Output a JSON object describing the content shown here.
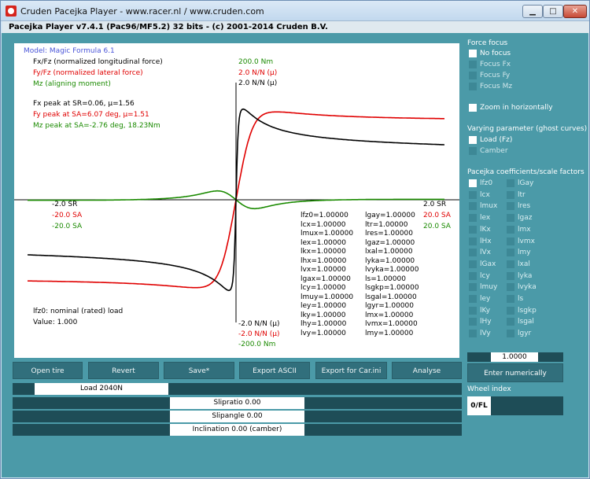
{
  "window": {
    "title": "Cruden Pacejka Player - www.racer.nl / www.cruden.com",
    "subtitle": "Pacejka Player v7.4.1 (Pac96/MF5.2) 32 bits - (c) 2001-2014 Cruden B.V.",
    "min_glyph": "▁",
    "max_glyph": "□",
    "close_glyph": "✕"
  },
  "plot": {
    "model": "Model: Magic Formula 6.1",
    "legend": [
      "Fx/Fz (normalized longitudinal force)",
      "Fy/Fz (normalized lateral force)",
      "Mz (aligning moment)"
    ],
    "peaks": [
      "Fx peak at SR=0.06, μ=1.56",
      "Fy peak at SA=6.07 deg, μ=1.51",
      "Mz peak at SA=-2.76 deg, 18.23Nm"
    ],
    "top_labels": [
      "200.0 Nm",
      "2.0 N/N (μ)",
      "2.0 N/N (μ)"
    ],
    "bottom_labels": [
      "-2.0 N/N (μ)",
      "-2.0 N/N (μ)",
      "-200.0 Nm"
    ],
    "left_labels": [
      "-2.0 SR",
      "-20.0 SA",
      "-20.0 SA"
    ],
    "right_labels": [
      "2.0 SR",
      "20.0 SA",
      "20.0 SA"
    ],
    "note": "lfz0: nominal (rated) load",
    "value": "Value: 1.000",
    "colors": {
      "fx": "#000000",
      "fy": "#e00000",
      "mz": "#1a8a00"
    }
  },
  "coefficients": {
    "col1": [
      "lfz0=1.00000",
      "lcx=1.00000",
      "lmux=1.00000",
      "lex=1.00000",
      "lkx=1.00000",
      "lhx=1.00000",
      "lvx=1.00000",
      "lgax=1.00000",
      "lcy=1.00000",
      "lmuy=1.00000",
      "ley=1.00000",
      "lky=1.00000",
      "lhy=1.00000",
      "lvy=1.00000"
    ],
    "col2": [
      "lgay=1.00000",
      "ltr=1.00000",
      "lres=1.00000",
      "lgaz=1.00000",
      "lxal=1.00000",
      "lyka=1.00000",
      "lvyka=1.00000",
      "ls=1.00000",
      "lsgkp=1.00000",
      "lsgal=1.00000",
      "lgyr=1.00000",
      "lmx=1.00000",
      "lvmx=1.00000",
      "lmy=1.00000"
    ]
  },
  "buttons": [
    "Open tire",
    "Revert",
    "Save*",
    "Export ASCII",
    "Export for Car.ini",
    "Analyse"
  ],
  "sliders": {
    "load": "Load 2040N",
    "slipratio": "Slipratio 0.00",
    "slipangle": "Slipangle 0.00",
    "inclination": "Inclination 0.00 (camber)"
  },
  "side": {
    "force_focus_title": "Force focus",
    "force_focus": [
      {
        "label": "No focus",
        "checked": true
      },
      {
        "label": "Focus Fx",
        "checked": false
      },
      {
        "label": "Focus Fy",
        "checked": false
      },
      {
        "label": "Focus Mz",
        "checked": false
      }
    ],
    "zoom": {
      "label": "Zoom in horizontally",
      "checked": true
    },
    "varying_title": "Varying parameter (ghost curves)",
    "varying": [
      {
        "label": "Load (Fz)",
        "checked": false
      },
      {
        "label": "Camber",
        "checked": false
      }
    ],
    "coef_title": "Pacejka coefficients/scale factors",
    "coef_col1": [
      "lfz0",
      "lcx",
      "lmux",
      "lex",
      "lKx",
      "lHx",
      "lVx",
      "lGax",
      "lcy",
      "lmuy",
      "ley",
      "lKy",
      "lHy",
      "lVy"
    ],
    "coef_col2": [
      "lGay",
      "ltr",
      "lres",
      "lgaz",
      "lmx",
      "lvmx",
      "lmy",
      "lxal",
      "lyka",
      "lvyka",
      "ls",
      "lsgkp",
      "lsgal",
      "lgyr"
    ],
    "value": "1.0000",
    "enter_label": "Enter numerically",
    "wheel_title": "Wheel index",
    "wheel_value": "0/FL"
  }
}
